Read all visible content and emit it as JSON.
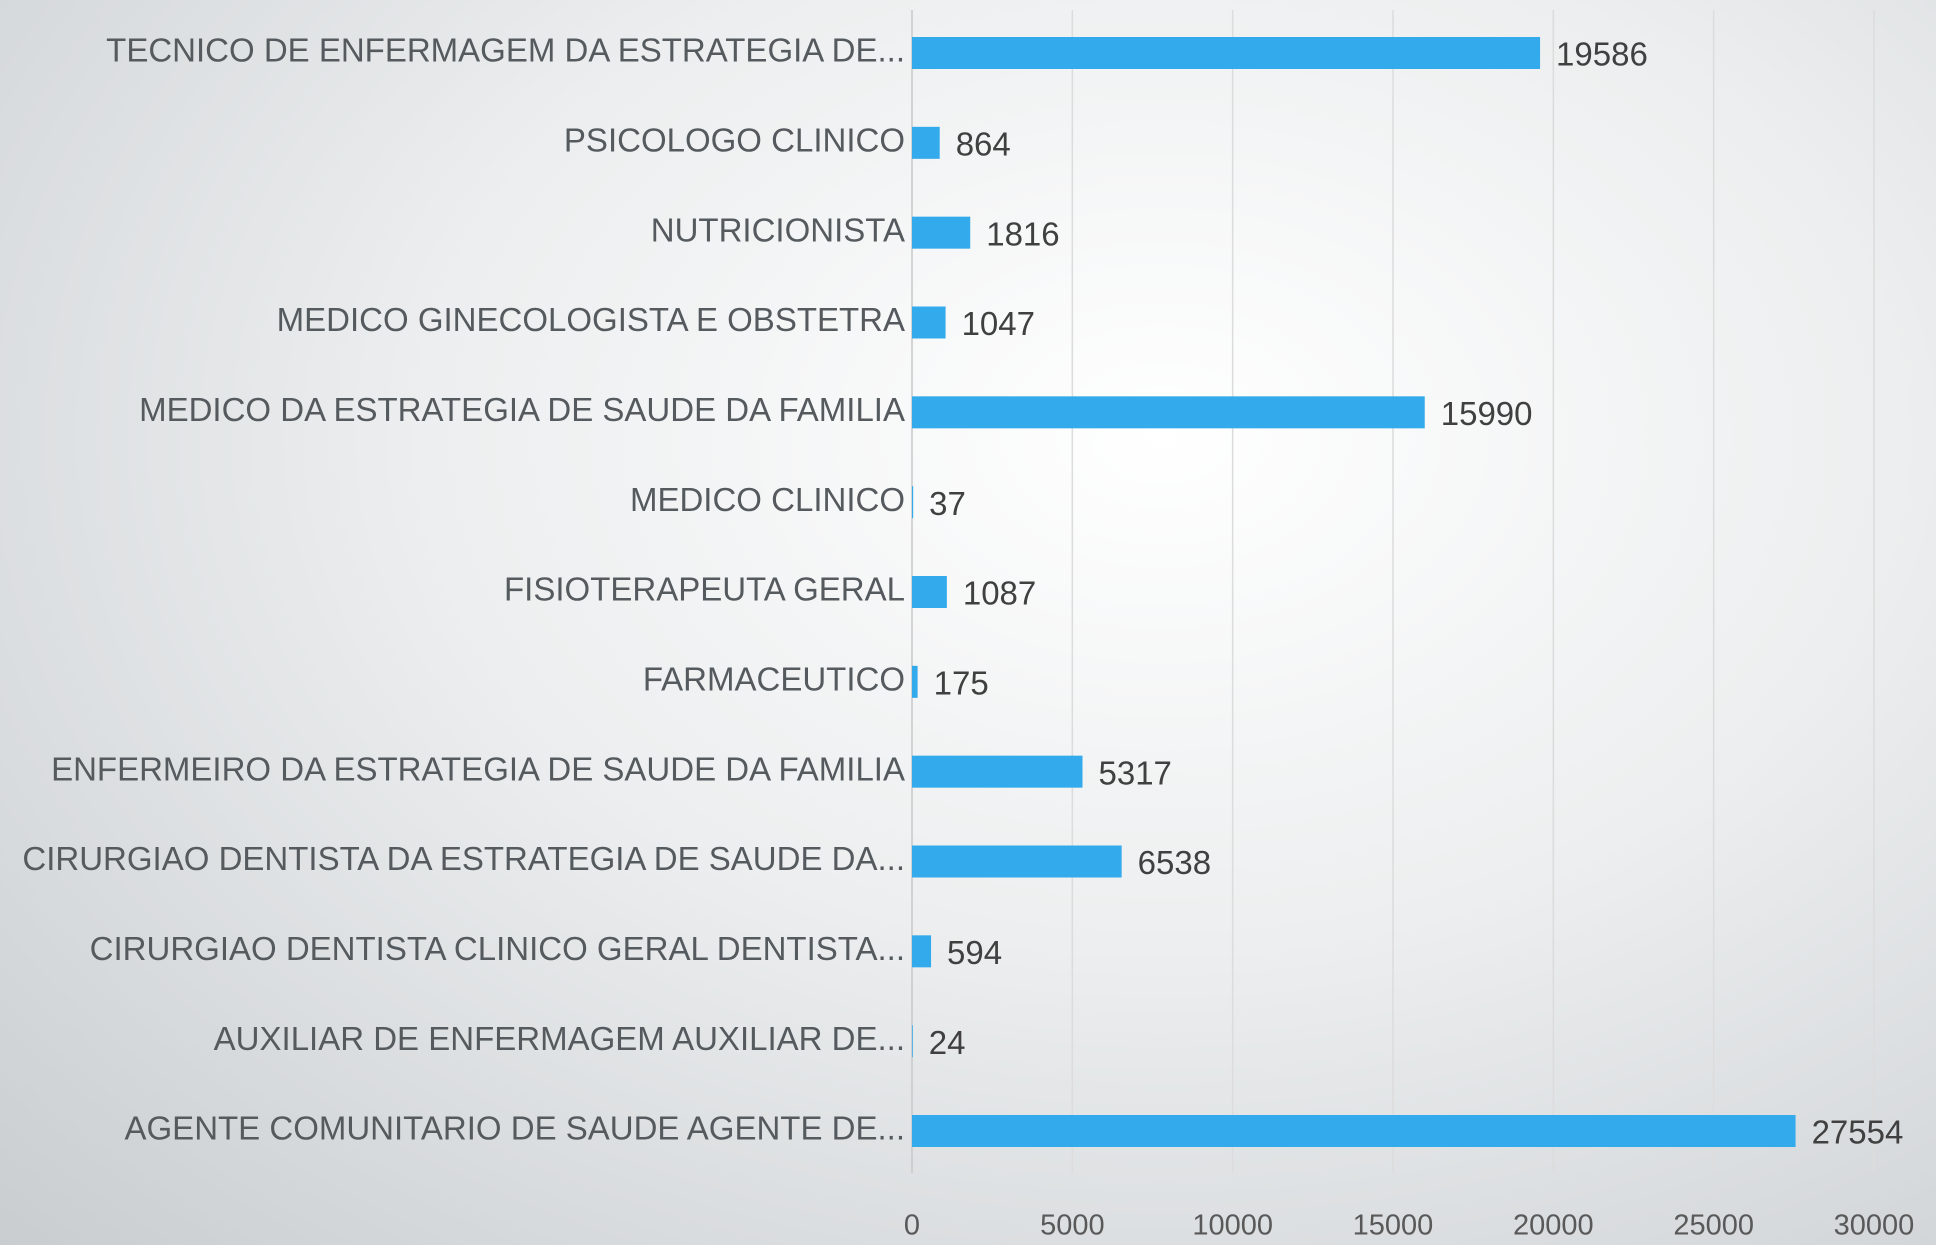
{
  "chart_data": {
    "type": "bar",
    "orientation": "horizontal",
    "categories": [
      "TECNICO DE ENFERMAGEM DA ESTRATEGIA DE...",
      "PSICOLOGO CLINICO",
      "NUTRICIONISTA",
      "MEDICO GINECOLOGISTA E OBSTETRA",
      "MEDICO DA ESTRATEGIA DE SAUDE DA FAMILIA",
      "MEDICO CLINICO",
      "FISIOTERAPEUTA GERAL",
      "FARMACEUTICO",
      "ENFERMEIRO DA ESTRATEGIA DE SAUDE DA FAMILIA",
      "CIRURGIAO DENTISTA DA ESTRATEGIA DE SAUDE DA...",
      "CIRURGIAO DENTISTA  CLINICO GERAL  DENTISTA...",
      "AUXILIAR DE ENFERMAGEM  AUXILIAR DE...",
      "AGENTE COMUNITARIO DE SAUDE  AGENTE DE..."
    ],
    "values": [
      19586,
      864,
      1816,
      1047,
      15990,
      37,
      1087,
      175,
      5317,
      6538,
      594,
      24,
      27554
    ],
    "color": "#33aaeb",
    "xlim": [
      0,
      30000
    ],
    "xticks": [
      0,
      5000,
      10000,
      15000,
      20000,
      25000,
      30000
    ],
    "grid": true
  }
}
